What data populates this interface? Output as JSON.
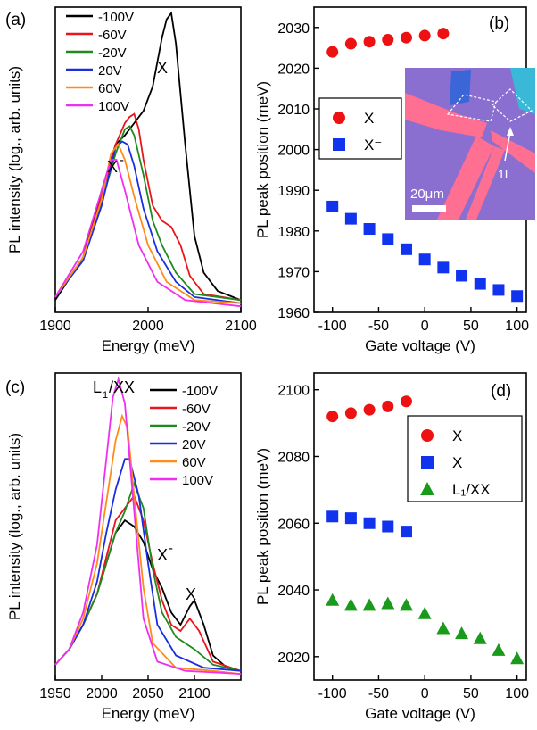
{
  "colors": {
    "-100V": "#000000",
    "-60V": "#e8161b",
    "-20V": "#1f8a1f",
    "20V": "#1a2ee0",
    "60V": "#ff8c1a",
    "100V": "#f02ef0",
    "X": "#ee1111",
    "Xminus": "#1133ee",
    "L1XX": "#1a9a1a",
    "inset_bg": "#8a6fd0",
    "inset_flake": "#ff6f91",
    "inset_cyan": "#3ab8d8"
  },
  "chart_data": [
    {
      "panel": "(a)",
      "type": "line",
      "xlabel": "Energy (meV)",
      "ylabel": "PL intensity (log., arb. units)",
      "xlim": [
        1900,
        2100
      ],
      "xticks": [
        1900,
        2000,
        2100
      ],
      "log_scale_y": true,
      "annotations": [
        "X",
        "X⁻"
      ],
      "legend": [
        "-100V",
        "-60V",
        "-20V",
        "20V",
        "60V",
        "100V"
      ],
      "series": [
        {
          "name": "-100V",
          "x": [
            1900,
            1930,
            1950,
            1965,
            1975,
            1985,
            1995,
            2005,
            2015,
            2020,
            2025,
            2030,
            2040,
            2050,
            2060,
            2075,
            2100
          ],
          "y": [
            0.04,
            0.18,
            0.4,
            0.55,
            0.58,
            0.62,
            0.66,
            0.74,
            0.9,
            0.96,
            0.98,
            0.88,
            0.55,
            0.25,
            0.13,
            0.07,
            0.04
          ]
        },
        {
          "name": "-60V",
          "x": [
            1900,
            1930,
            1950,
            1965,
            1975,
            1980,
            1985,
            1990,
            1995,
            2005,
            2015,
            2025,
            2035,
            2045,
            2060,
            2100
          ],
          "y": [
            0.05,
            0.18,
            0.38,
            0.55,
            0.62,
            0.64,
            0.65,
            0.6,
            0.5,
            0.35,
            0.3,
            0.28,
            0.22,
            0.12,
            0.06,
            0.04
          ]
        },
        {
          "name": "-20V",
          "x": [
            1900,
            1930,
            1950,
            1965,
            1975,
            1980,
            1985,
            1995,
            2005,
            2015,
            2030,
            2050,
            2100
          ],
          "y": [
            0.05,
            0.17,
            0.36,
            0.52,
            0.6,
            0.61,
            0.58,
            0.45,
            0.3,
            0.22,
            0.13,
            0.06,
            0.04
          ]
        },
        {
          "name": "20V",
          "x": [
            1900,
            1930,
            1950,
            1965,
            1972,
            1978,
            1985,
            1995,
            2010,
            2030,
            2050,
            2100
          ],
          "y": [
            0.05,
            0.17,
            0.35,
            0.54,
            0.56,
            0.55,
            0.48,
            0.34,
            0.2,
            0.1,
            0.05,
            0.03
          ]
        },
        {
          "name": "60V",
          "x": [
            1900,
            1930,
            1950,
            1960,
            1968,
            1975,
            1985,
            2000,
            2020,
            2050,
            2100
          ],
          "y": [
            0.05,
            0.18,
            0.37,
            0.52,
            0.55,
            0.5,
            0.38,
            0.22,
            0.1,
            0.04,
            0.03
          ]
        },
        {
          "name": "100V",
          "x": [
            1900,
            1930,
            1950,
            1960,
            1966,
            1975,
            1990,
            2010,
            2040,
            2100
          ],
          "y": [
            0.05,
            0.2,
            0.4,
            0.5,
            0.5,
            0.4,
            0.22,
            0.1,
            0.04,
            0.02
          ]
        }
      ]
    },
    {
      "panel": "(b)",
      "type": "scatter",
      "xlabel": "Gate voltage (V)",
      "ylabel": "PL peak position (meV)",
      "xlim": [
        -120,
        110
      ],
      "ylim": [
        1960,
        2035
      ],
      "xticks": [
        -100,
        -50,
        0,
        50,
        100
      ],
      "yticks": [
        1960,
        1970,
        1980,
        1990,
        2000,
        2010,
        2020,
        2030
      ],
      "legend": [
        "X",
        "X⁻"
      ],
      "inset": {
        "scale_label": "20μm",
        "flake_label": "1L"
      },
      "series": [
        {
          "name": "X",
          "marker": "circle",
          "x": [
            -100,
            -80,
            -60,
            -40,
            -20,
            0,
            20
          ],
          "y": [
            2024,
            2026,
            2026.5,
            2027,
            2027.5,
            2028,
            2028.5
          ]
        },
        {
          "name": "X⁻",
          "marker": "square",
          "x": [
            -100,
            -80,
            -60,
            -40,
            -20,
            0,
            20,
            40,
            60,
            80,
            100
          ],
          "y": [
            1986,
            1983,
            1980.5,
            1978,
            1975.5,
            1973,
            1971,
            1969,
            1967,
            1965.5,
            1964
          ]
        }
      ]
    },
    {
      "panel": "(c)",
      "type": "line",
      "xlabel": "Energy (meV)",
      "ylabel": "PL intensity (log., arb. units)",
      "xlim": [
        1950,
        2150
      ],
      "xticks": [
        1950,
        2000,
        2050,
        2100
      ],
      "log_scale_y": true,
      "annotations": [
        "L₁/XX",
        "X⁻",
        "X"
      ],
      "legend": [
        "-100V",
        "-60V",
        "-20V",
        "20V",
        "60V",
        "100V"
      ],
      "series": [
        {
          "name": "-100V",
          "x": [
            1950,
            1965,
            1980,
            1995,
            2005,
            2015,
            2025,
            2035,
            2045,
            2055,
            2065,
            2075,
            2085,
            2095,
            2100,
            2110,
            2120,
            2135,
            2150
          ],
          "y": [
            0.05,
            0.1,
            0.18,
            0.28,
            0.38,
            0.48,
            0.52,
            0.5,
            0.45,
            0.36,
            0.3,
            0.22,
            0.18,
            0.24,
            0.26,
            0.18,
            0.08,
            0.04,
            0.03
          ]
        },
        {
          "name": "-60V",
          "x": [
            1950,
            1965,
            1980,
            1995,
            2005,
            2015,
            2025,
            2035,
            2045,
            2055,
            2065,
            2075,
            2085,
            2095,
            2105,
            2120,
            2150
          ],
          "y": [
            0.05,
            0.1,
            0.18,
            0.28,
            0.4,
            0.52,
            0.56,
            0.6,
            0.52,
            0.38,
            0.26,
            0.18,
            0.16,
            0.2,
            0.16,
            0.06,
            0.03
          ]
        },
        {
          "name": "-20V",
          "x": [
            1950,
            1965,
            1980,
            1995,
            2005,
            2015,
            2025,
            2035,
            2045,
            2055,
            2065,
            2080,
            2100,
            2120,
            2150
          ],
          "y": [
            0.05,
            0.1,
            0.18,
            0.28,
            0.38,
            0.48,
            0.55,
            0.64,
            0.56,
            0.36,
            0.22,
            0.14,
            0.1,
            0.05,
            0.03
          ]
        },
        {
          "name": "20V",
          "x": [
            1950,
            1965,
            1980,
            1995,
            2005,
            2015,
            2025,
            2030,
            2040,
            2050,
            2060,
            2080,
            2110,
            2150
          ],
          "y": [
            0.05,
            0.1,
            0.18,
            0.32,
            0.48,
            0.62,
            0.72,
            0.72,
            0.6,
            0.38,
            0.18,
            0.08,
            0.04,
            0.03
          ]
        },
        {
          "name": "60V",
          "x": [
            1950,
            1965,
            1980,
            1995,
            2005,
            2015,
            2022,
            2028,
            2035,
            2045,
            2055,
            2080,
            2120,
            2150
          ],
          "y": [
            0.05,
            0.1,
            0.2,
            0.38,
            0.58,
            0.78,
            0.86,
            0.82,
            0.6,
            0.3,
            0.12,
            0.04,
            0.03,
            0.02
          ]
        },
        {
          "name": "100V",
          "x": [
            1950,
            1965,
            1980,
            1995,
            2005,
            2012,
            2018,
            2025,
            2035,
            2045,
            2060,
            2090,
            2150
          ],
          "y": [
            0.05,
            0.1,
            0.22,
            0.44,
            0.72,
            0.92,
            0.98,
            0.9,
            0.55,
            0.2,
            0.06,
            0.03,
            0.02
          ]
        }
      ]
    },
    {
      "panel": "(d)",
      "type": "scatter",
      "xlabel": "Gate voltage (V)",
      "ylabel": "PL peak position (meV)",
      "xlim": [
        -120,
        110
      ],
      "ylim": [
        2013,
        2105
      ],
      "xticks": [
        -100,
        -50,
        0,
        50,
        100
      ],
      "yticks": [
        2020,
        2040,
        2060,
        2080,
        2100
      ],
      "legend": [
        "X",
        "X⁻",
        "L₁/XX"
      ],
      "series": [
        {
          "name": "X",
          "marker": "circle",
          "x": [
            -100,
            -80,
            -60,
            -40,
            -20
          ],
          "y": [
            2092,
            2093,
            2094,
            2095,
            2096.5
          ]
        },
        {
          "name": "X⁻",
          "marker": "square",
          "x": [
            -100,
            -80,
            -60,
            -40,
            -20
          ],
          "y": [
            2062,
            2061.5,
            2060,
            2059,
            2057.5
          ]
        },
        {
          "name": "L₁/XX",
          "marker": "triangle",
          "x": [
            -100,
            -80,
            -60,
            -40,
            -20,
            0,
            20,
            40,
            60,
            80,
            100
          ],
          "y": [
            2037,
            2035.5,
            2035.5,
            2036,
            2035.5,
            2033,
            2028.5,
            2027,
            2025.5,
            2022,
            2019.5
          ]
        }
      ]
    }
  ]
}
